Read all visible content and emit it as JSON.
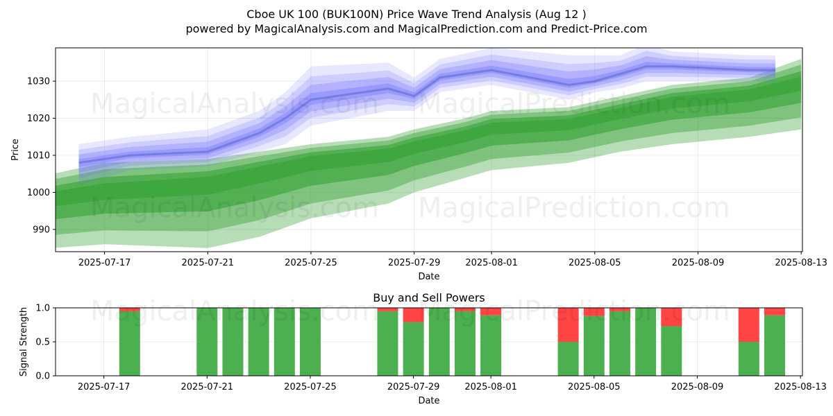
{
  "title_line1": "Cboe UK 100 (BUK100N) Price Wave Trend Analysis (Aug 12 )",
  "title_line2": "powered by MagicalAnalysis.com and MagicalPrediction.com and Predict-Price.com",
  "watermarks": [
    "MagicalAnalysis.com",
    "MagicalPrediction.com"
  ],
  "colors": {
    "blue_band": "#6a6aff",
    "green_band": "#2e9e2e",
    "buy": "#4caf50",
    "sell": "#ff4444"
  },
  "chart_data": [
    {
      "type": "area",
      "title": "",
      "xlabel": "Date",
      "ylabel": "Price",
      "x_ticks": [
        "2025-07-17",
        "2025-07-21",
        "2025-07-25",
        "2025-07-29",
        "2025-08-01",
        "2025-08-05",
        "2025-08-09",
        "2025-08-13"
      ],
      "y_ticks": [
        990,
        1000,
        1010,
        1020,
        1030
      ],
      "ylim": [
        984,
        1039
      ],
      "xlim": [
        "2025-07-15",
        "2025-08-13"
      ],
      "grid": true,
      "series": [
        {
          "color": "blue",
          "x": [
            "2025-07-16",
            "2025-07-18",
            "2025-07-21",
            "2025-07-23",
            "2025-07-24",
            "2025-07-25",
            "2025-07-28",
            "2025-07-29",
            "2025-07-30",
            "2025-08-01",
            "2025-08-04",
            "2025-08-05",
            "2025-08-06",
            "2025-08-07",
            "2025-08-08",
            "2025-08-11",
            "2025-08-12"
          ],
          "center": [
            1008,
            1010,
            1011,
            1016,
            1020,
            1025,
            1028,
            1026,
            1031,
            1033,
            1029,
            1030,
            1032,
            1034,
            1034,
            1033,
            1033
          ],
          "upper": [
            1013,
            1015,
            1017,
            1022,
            1027,
            1034,
            1035,
            1031,
            1036,
            1039,
            1037,
            1037,
            1037,
            1040,
            1038,
            1037,
            1037
          ],
          "lower": [
            1002,
            1006,
            1007,
            1011,
            1013,
            1018,
            1022,
            1022,
            1027,
            1029,
            1025,
            1027,
            1028,
            1030,
            1030,
            1030,
            1030
          ]
        },
        {
          "color": "green",
          "x": [
            "2025-07-15",
            "2025-07-17",
            "2025-07-21",
            "2025-07-23",
            "2025-07-25",
            "2025-07-28",
            "2025-07-29",
            "2025-07-31",
            "2025-08-01",
            "2025-08-04",
            "2025-08-06",
            "2025-08-08",
            "2025-08-11",
            "2025-08-13"
          ],
          "center": [
            999,
            1001,
            1003,
            1006,
            1009,
            1011,
            1013,
            1016,
            1018,
            1019,
            1022,
            1025,
            1027,
            1030
          ],
          "upper": [
            1005,
            1008,
            1009,
            1011,
            1013,
            1015,
            1017,
            1020,
            1022,
            1023,
            1026,
            1029,
            1031,
            1036
          ],
          "lower": [
            985,
            986,
            985,
            988,
            993,
            997,
            1000,
            1004,
            1006,
            1008,
            1011,
            1013,
            1015,
            1017
          ]
        }
      ]
    },
    {
      "type": "bar",
      "title": "Buy and Sell Powers",
      "xlabel": "Date",
      "ylabel": "Signal Strength",
      "x_ticks": [
        "2025-07-17",
        "2025-07-21",
        "2025-07-25",
        "2025-07-29",
        "2025-08-01",
        "2025-08-05",
        "2025-08-09",
        "2025-08-13"
      ],
      "y_ticks": [
        "0.0",
        "0.5",
        "1.0"
      ],
      "ylim": [
        0,
        1
      ],
      "grid": true,
      "categories": [
        "2025-07-18",
        "2025-07-21",
        "2025-07-22",
        "2025-07-23",
        "2025-07-24",
        "2025-07-25",
        "2025-07-28",
        "2025-07-29",
        "2025-07-30",
        "2025-07-31",
        "2025-08-01",
        "2025-08-04",
        "2025-08-05",
        "2025-08-06",
        "2025-08-07",
        "2025-08-08",
        "2025-08-11",
        "2025-08-12"
      ],
      "series": [
        {
          "values": [
            0.95,
            1.0,
            1.0,
            1.0,
            1.0,
            1.0,
            0.95,
            0.79,
            1.0,
            0.95,
            0.89,
            0.5,
            0.88,
            0.95,
            1.0,
            0.73,
            0.5,
            0.89
          ]
        },
        {
          "values": [
            0.05,
            0.0,
            0.0,
            0.0,
            0.0,
            0.0,
            0.05,
            0.21,
            0.0,
            0.05,
            0.11,
            0.5,
            0.12,
            0.05,
            0.0,
            0.27,
            0.5,
            0.11
          ]
        }
      ]
    }
  ]
}
